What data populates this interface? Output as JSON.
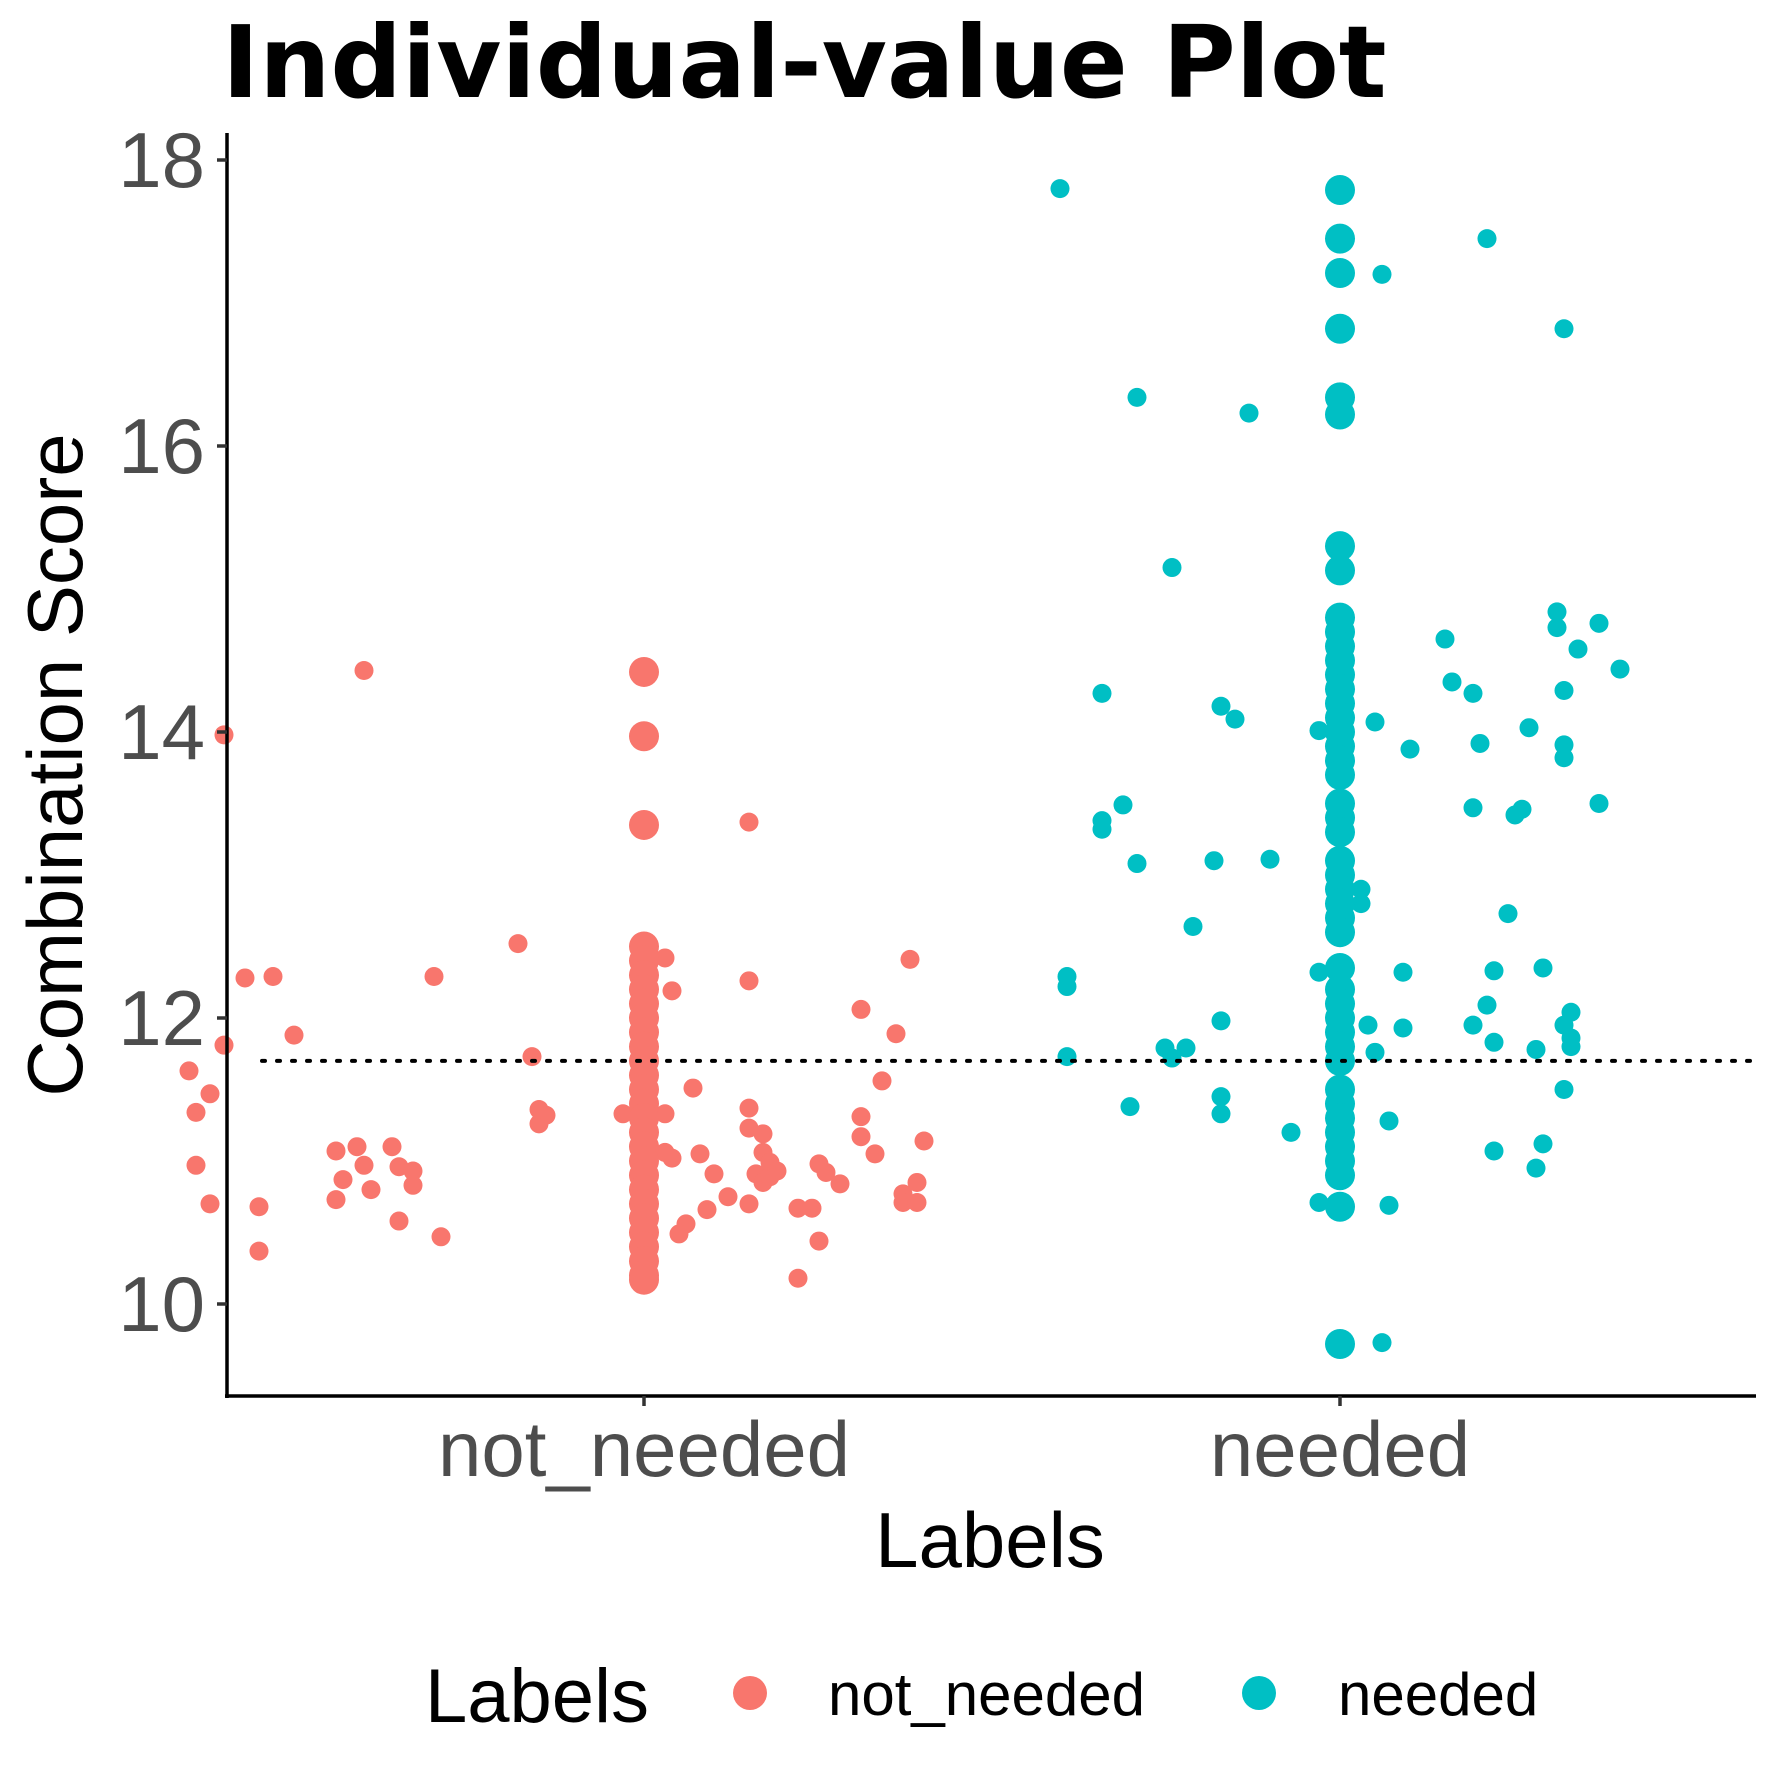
{
  "chart_data": {
    "type": "scatter",
    "title": "Individual-value Plot",
    "xlabel": "Labels",
    "ylabel": "Combination Score",
    "categories": [
      "not_needed",
      "needed"
    ],
    "ylim": [
      9.35,
      18.2
    ],
    "yticks": [
      10,
      12,
      14,
      16,
      18
    ],
    "reference_line": {
      "y": 11.7,
      "style": "dotted"
    },
    "grid": false,
    "legend": {
      "title": "Labels",
      "position": "bottom",
      "entries": [
        {
          "name": "not_needed",
          "color": "#f8766d"
        },
        {
          "name": "needed",
          "color": "#00bfc4"
        }
      ]
    },
    "colors": {
      "not_needed": "#f8766d",
      "needed": "#00bfc4"
    },
    "series": [
      {
        "name": "not_needed",
        "color": "#f8766d",
        "values": [
          14.42,
          13.97,
          13.35,
          12.5,
          12.4,
          12.3,
          12.2,
          12.1,
          12.0,
          11.9,
          11.8,
          11.7,
          11.6,
          11.5,
          11.4,
          11.3,
          11.2,
          11.1,
          11.0,
          10.9,
          10.8,
          10.7,
          10.6,
          10.5,
          10.4,
          10.3,
          10.2,
          10.17
        ],
        "jitter": [
          [
            -0.6,
            13.98
          ],
          [
            -0.4,
            14.43
          ],
          [
            -0.65,
            11.63
          ],
          [
            -0.64,
            11.34
          ],
          [
            -0.57,
            12.28
          ],
          [
            -0.53,
            12.29
          ],
          [
            -0.6,
            11.81
          ],
          [
            -0.62,
            11.47
          ],
          [
            -0.64,
            10.97
          ],
          [
            -0.55,
            10.68
          ],
          [
            -0.62,
            10.7
          ],
          [
            -0.5,
            11.88
          ],
          [
            -0.55,
            10.37
          ],
          [
            -0.44,
            11.07
          ],
          [
            -0.43,
            10.87
          ],
          [
            -0.41,
            11.1
          ],
          [
            -0.4,
            10.97
          ],
          [
            -0.39,
            10.8
          ],
          [
            -0.36,
            11.1
          ],
          [
            -0.35,
            10.96
          ],
          [
            -0.33,
            10.93
          ],
          [
            -0.33,
            10.83
          ],
          [
            -0.35,
            10.58
          ],
          [
            -0.44,
            10.73
          ],
          [
            -0.18,
            12.52
          ],
          [
            -0.16,
            11.73
          ],
          [
            -0.14,
            11.32
          ],
          [
            -0.15,
            11.26
          ],
          [
            -0.29,
            10.47
          ],
          [
            -0.15,
            11.36
          ],
          [
            -0.03,
            11.33
          ],
          [
            -0.3,
            12.29
          ],
          [
            0.03,
            12.42
          ],
          [
            0.04,
            12.19
          ],
          [
            0.03,
            11.33
          ],
          [
            0.03,
            11.06
          ],
          [
            0.04,
            11.02
          ],
          [
            0.07,
            11.51
          ],
          [
            0.08,
            11.05
          ],
          [
            0.1,
            10.91
          ],
          [
            0.09,
            10.66
          ],
          [
            0.06,
            10.56
          ],
          [
            0.05,
            10.49
          ],
          [
            0.12,
            10.75
          ],
          [
            0.15,
            11.37
          ],
          [
            0.15,
            11.23
          ],
          [
            0.16,
            10.91
          ],
          [
            0.17,
            10.85
          ],
          [
            0.15,
            10.7
          ],
          [
            0.15,
            13.37
          ],
          [
            0.15,
            12.26
          ],
          [
            0.17,
            11.19
          ],
          [
            0.17,
            11.06
          ],
          [
            0.18,
            10.99
          ],
          [
            0.18,
            10.89
          ],
          [
            0.19,
            10.93
          ],
          [
            0.22,
            10.67
          ],
          [
            0.24,
            10.67
          ],
          [
            0.25,
            10.44
          ],
          [
            0.22,
            10.18
          ],
          [
            0.25,
            10.98
          ],
          [
            0.26,
            10.92
          ],
          [
            0.28,
            10.84
          ],
          [
            0.31,
            11.31
          ],
          [
            0.31,
            11.17
          ],
          [
            0.31,
            12.06
          ],
          [
            0.33,
            11.05
          ],
          [
            0.34,
            11.56
          ],
          [
            0.36,
            11.89
          ],
          [
            0.37,
            10.77
          ],
          [
            0.37,
            10.71
          ],
          [
            0.38,
            12.41
          ],
          [
            0.39,
            10.71
          ],
          [
            0.39,
            10.85
          ],
          [
            0.4,
            11.14
          ]
        ]
      },
      {
        "name": "needed",
        "color": "#00bfc4",
        "values": [
          17.79,
          17.45,
          17.21,
          16.82,
          16.34,
          16.22,
          15.3,
          15.13,
          14.8,
          14.7,
          14.6,
          14.5,
          14.4,
          14.3,
          14.2,
          14.1,
          14.0,
          13.9,
          13.8,
          13.7,
          13.5,
          13.4,
          13.3,
          13.1,
          13.0,
          12.9,
          12.8,
          12.7,
          12.6,
          12.35,
          12.2,
          12.1,
          12.0,
          11.9,
          11.8,
          11.7,
          11.5,
          11.4,
          11.3,
          11.2,
          11.1,
          11.0,
          10.9,
          10.68,
          9.72
        ],
        "jitter": [
          [
            -0.4,
            17.8
          ],
          [
            -0.29,
            16.34
          ],
          [
            -0.13,
            16.23
          ],
          [
            -0.24,
            15.15
          ],
          [
            -0.34,
            14.27
          ],
          [
            -0.17,
            14.18
          ],
          [
            -0.15,
            14.09
          ],
          [
            -0.34,
            13.38
          ],
          [
            -0.34,
            13.32
          ],
          [
            -0.31,
            13.49
          ],
          [
            -0.29,
            13.08
          ],
          [
            -0.18,
            13.1
          ],
          [
            -0.1,
            13.11
          ],
          [
            -0.21,
            12.64
          ],
          [
            -0.39,
            12.29
          ],
          [
            -0.39,
            12.22
          ],
          [
            -0.39,
            11.73
          ],
          [
            -0.25,
            11.79
          ],
          [
            -0.24,
            11.72
          ],
          [
            -0.22,
            11.79
          ],
          [
            -0.17,
            11.98
          ],
          [
            -0.17,
            11.45
          ],
          [
            -0.17,
            11.33
          ],
          [
            -0.3,
            11.38
          ],
          [
            -0.07,
            11.2
          ],
          [
            -0.03,
            14.01
          ],
          [
            -0.03,
            12.32
          ],
          [
            -0.03,
            10.71
          ],
          [
            0.06,
            17.2
          ],
          [
            0.05,
            14.07
          ],
          [
            0.03,
            12.9
          ],
          [
            0.03,
            12.8
          ],
          [
            0.05,
            11.76
          ],
          [
            0.04,
            11.95
          ],
          [
            0.07,
            11.28
          ],
          [
            0.07,
            10.69
          ],
          [
            0.06,
            9.73
          ],
          [
            0.1,
            13.88
          ],
          [
            0.09,
            11.93
          ],
          [
            0.09,
            12.32
          ],
          [
            0.15,
            14.65
          ],
          [
            0.16,
            14.35
          ],
          [
            0.21,
            17.45
          ],
          [
            0.19,
            14.27
          ],
          [
            0.19,
            13.47
          ],
          [
            0.2,
            13.92
          ],
          [
            0.22,
            12.33
          ],
          [
            0.21,
            12.09
          ],
          [
            0.19,
            11.95
          ],
          [
            0.22,
            11.83
          ],
          [
            0.22,
            11.07
          ],
          [
            0.24,
            12.73
          ],
          [
            0.25,
            13.42
          ],
          [
            0.26,
            13.46
          ],
          [
            0.27,
            14.03
          ],
          [
            0.28,
            11.78
          ],
          [
            0.28,
            10.95
          ],
          [
            0.29,
            12.35
          ],
          [
            0.29,
            11.12
          ],
          [
            0.31,
            14.84
          ],
          [
            0.31,
            14.73
          ],
          [
            0.32,
            14.29
          ],
          [
            0.32,
            13.91
          ],
          [
            0.32,
            13.82
          ],
          [
            0.32,
            11.95
          ],
          [
            0.32,
            11.5
          ],
          [
            0.33,
            12.04
          ],
          [
            0.33,
            11.86
          ],
          [
            0.33,
            11.8
          ],
          [
            0.32,
            16.82
          ],
          [
            0.34,
            14.58
          ],
          [
            0.37,
            14.76
          ],
          [
            0.37,
            13.5
          ],
          [
            0.4,
            14.44
          ]
        ]
      }
    ]
  }
}
